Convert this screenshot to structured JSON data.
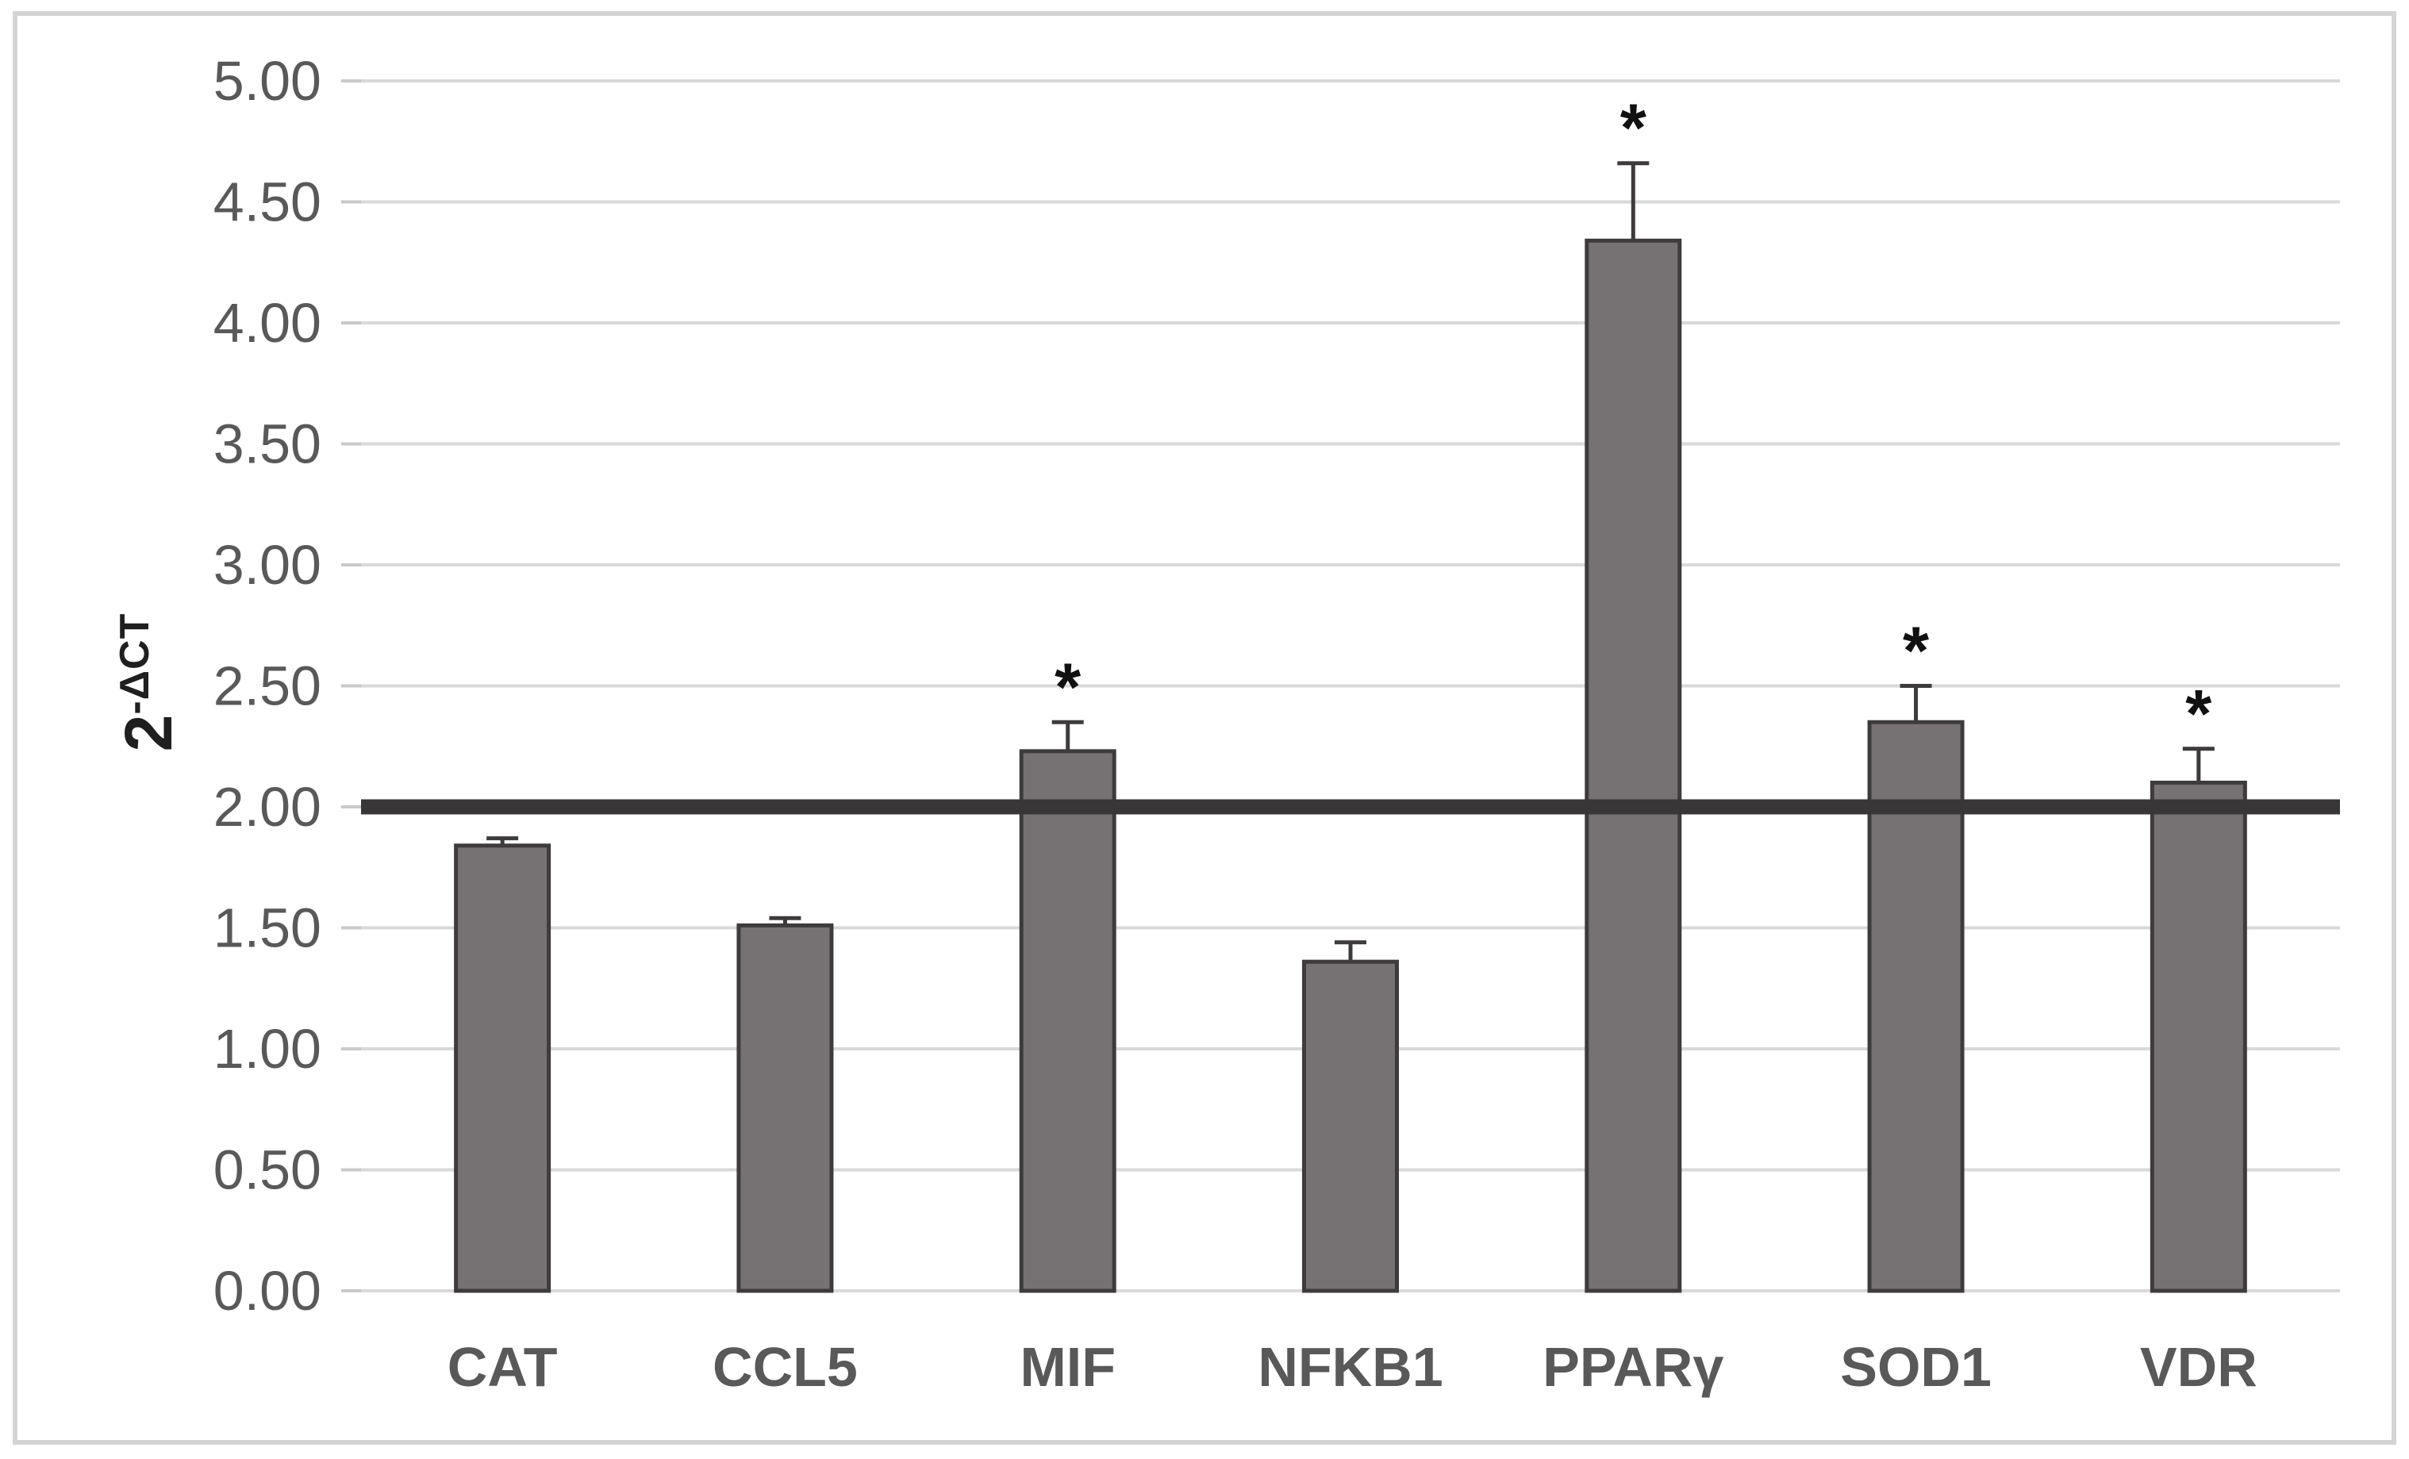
{
  "figure": {
    "background": "#ffffff",
    "border_color": "#d4d4d4"
  },
  "y_axis": {
    "title_base": "2",
    "title_superscript": "-ΔCT",
    "min": 0,
    "max": 5,
    "step": 0.5,
    "tick_labels": [
      "0.00",
      "0.50",
      "1.00",
      "1.50",
      "2.00",
      "2.50",
      "3.00",
      "3.50",
      "4.00",
      "4.50",
      "5.00"
    ]
  },
  "chart_data": {
    "type": "bar",
    "title": "",
    "xlabel": "",
    "ylabel": "2^-ΔCT",
    "categories": [
      "CAT",
      "CCL5",
      "MIF",
      "NFKB1",
      "PPARγ",
      "SOD1",
      "VDR"
    ],
    "values": [
      1.84,
      1.51,
      2.23,
      1.36,
      4.34,
      2.35,
      2.1
    ],
    "error_plus": [
      0.03,
      0.03,
      0.12,
      0.08,
      0.32,
      0.15,
      0.14
    ],
    "significance": [
      false,
      false,
      true,
      false,
      true,
      true,
      true
    ],
    "significance_marker": "*",
    "threshold_line": 2.0,
    "ylim": [
      0,
      5
    ],
    "grid": true,
    "legend": "none",
    "colors": {
      "bar_fill": "#767173",
      "bar_border": "#3e3b3c",
      "error_bar": "#3e3b3c",
      "threshold": "#383636",
      "gridline": "#d9d9d9",
      "axis_tick": "#c9c9c9",
      "tick_label": "#595959",
      "category_label": "#595959",
      "marker": "#111111",
      "axis_title": "#1f1f1f"
    }
  }
}
